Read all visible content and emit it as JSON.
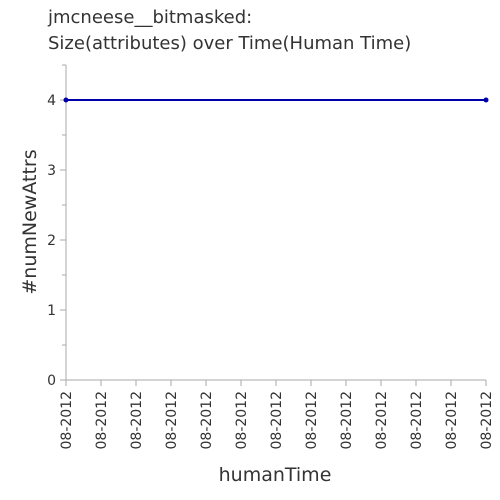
{
  "chart_data": {
    "type": "line",
    "title_lines": [
      "jmcneese__bitmasked:",
      "Size(attributes) over Time(Human Time)"
    ],
    "xlabel": "humanTime",
    "ylabel": "#numNewAttrs",
    "x_tick_labels": [
      "08-2012",
      "08-2012",
      "08-2012",
      "08-2012",
      "08-2012",
      "08-2012",
      "08-2012",
      "08-2012",
      "08-2012",
      "08-2012",
      "08-2012",
      "08-2012",
      "08-2012"
    ],
    "y_ticks": [
      0,
      1,
      2,
      3,
      4
    ],
    "ylim": [
      0,
      4.5
    ],
    "series": [
      {
        "points": [
          {
            "x_index": 0,
            "y": 4
          },
          {
            "x_index": 12,
            "y": 4
          }
        ]
      }
    ],
    "series_color": "#0000aa",
    "grid": false
  }
}
